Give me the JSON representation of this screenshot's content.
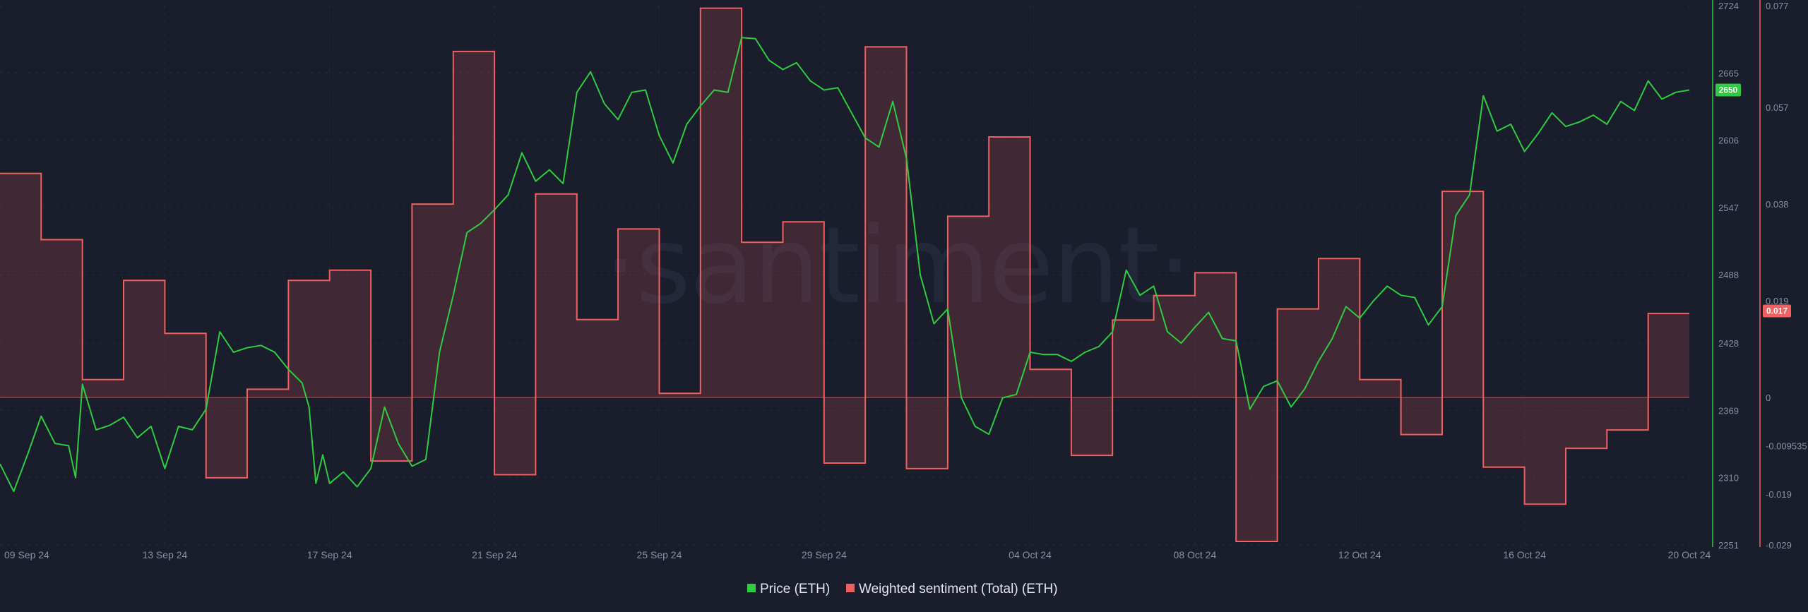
{
  "watermark": "·santiment·",
  "legend": [
    {
      "label": "Price (ETH)",
      "color": "#2ecc40"
    },
    {
      "label": "Weighted sentiment (Total) (ETH)",
      "color": "#f06060"
    }
  ],
  "price_axis_ticks": [
    "2724",
    "2665",
    "2606",
    "2547",
    "2488",
    "2428",
    "2369",
    "2310",
    "2251"
  ],
  "sentiment_axis_ticks": [
    "0.077",
    "0.057",
    "0.038",
    "0.019",
    "0",
    "-0.009535",
    "-0.019",
    "-0.029"
  ],
  "x_axis_ticks": [
    "09 Sep 24",
    "13 Sep 24",
    "17 Sep 24",
    "21 Sep 24",
    "25 Sep 24",
    "29 Sep 24",
    "04 Oct 24",
    "08 Oct 24",
    "12 Oct 24",
    "16 Oct 24",
    "20 Oct 24"
  ],
  "price_badge": "2650",
  "sentiment_badge": "0.017",
  "colors": {
    "background": "#1a1d2b",
    "price": "#2ecc40",
    "sentiment": "#f06060",
    "sentiment_fill": "rgba(240,96,96,0.18)"
  },
  "chart_data": {
    "type": "line",
    "x_range": [
      "2024-09-09",
      "2024-10-20"
    ],
    "price_ylim": [
      2251,
      2724
    ],
    "sentiment_ylim": [
      -0.029,
      0.077
    ],
    "series": [
      {
        "name": "Price (ETH)",
        "axis": "right-inner",
        "points": [
          [
            "2024-09-09 00:00",
            2322
          ],
          [
            "2024-09-09 08:00",
            2298
          ],
          [
            "2024-09-09 16:00",
            2330
          ],
          [
            "2024-09-10 00:00",
            2364
          ],
          [
            "2024-09-10 08:00",
            2340
          ],
          [
            "2024-09-10 16:00",
            2338
          ],
          [
            "2024-09-10 20:00",
            2310
          ],
          [
            "2024-09-11 00:00",
            2392
          ],
          [
            "2024-09-11 08:00",
            2352
          ],
          [
            "2024-09-11 16:00",
            2356
          ],
          [
            "2024-09-12 00:00",
            2363
          ],
          [
            "2024-09-12 08:00",
            2345
          ],
          [
            "2024-09-12 16:00",
            2355
          ],
          [
            "2024-09-13 00:00",
            2318
          ],
          [
            "2024-09-13 08:00",
            2355
          ],
          [
            "2024-09-13 16:00",
            2352
          ],
          [
            "2024-09-14 00:00",
            2370
          ],
          [
            "2024-09-14 08:00",
            2438
          ],
          [
            "2024-09-14 16:00",
            2420
          ],
          [
            "2024-09-15 00:00",
            2424
          ],
          [
            "2024-09-15 08:00",
            2426
          ],
          [
            "2024-09-15 16:00",
            2420
          ],
          [
            "2024-09-16 00:00",
            2405
          ],
          [
            "2024-09-16 08:00",
            2393
          ],
          [
            "2024-09-16 12:00",
            2372
          ],
          [
            "2024-09-16 16:00",
            2305
          ],
          [
            "2024-09-16 20:00",
            2330
          ],
          [
            "2024-09-17 00:00",
            2305
          ],
          [
            "2024-09-17 08:00",
            2315
          ],
          [
            "2024-09-17 16:00",
            2302
          ],
          [
            "2024-09-18 00:00",
            2318
          ],
          [
            "2024-09-18 08:00",
            2372
          ],
          [
            "2024-09-18 16:00",
            2340
          ],
          [
            "2024-09-19 00:00",
            2320
          ],
          [
            "2024-09-19 08:00",
            2326
          ],
          [
            "2024-09-19 16:00",
            2420
          ],
          [
            "2024-09-20 00:00",
            2470
          ],
          [
            "2024-09-20 08:00",
            2525
          ],
          [
            "2024-09-20 16:00",
            2533
          ],
          [
            "2024-09-21 00:00",
            2545
          ],
          [
            "2024-09-21 08:00",
            2558
          ],
          [
            "2024-09-21 16:00",
            2595
          ],
          [
            "2024-09-22 00:00",
            2570
          ],
          [
            "2024-09-22 08:00",
            2580
          ],
          [
            "2024-09-22 16:00",
            2568
          ],
          [
            "2024-09-23 00:00",
            2648
          ],
          [
            "2024-09-23 08:00",
            2666
          ],
          [
            "2024-09-23 16:00",
            2638
          ],
          [
            "2024-09-24 00:00",
            2624
          ],
          [
            "2024-09-24 08:00",
            2648
          ],
          [
            "2024-09-24 16:00",
            2650
          ],
          [
            "2024-09-25 00:00",
            2610
          ],
          [
            "2024-09-25 08:00",
            2586
          ],
          [
            "2024-09-25 16:00",
            2620
          ],
          [
            "2024-09-26 00:00",
            2636
          ],
          [
            "2024-09-26 08:00",
            2650
          ],
          [
            "2024-09-26 16:00",
            2648
          ],
          [
            "2024-09-27 00:00",
            2696
          ],
          [
            "2024-09-27 08:00",
            2695
          ],
          [
            "2024-09-27 16:00",
            2676
          ],
          [
            "2024-09-28 00:00",
            2668
          ],
          [
            "2024-09-28 08:00",
            2674
          ],
          [
            "2024-09-28 16:00",
            2658
          ],
          [
            "2024-09-29 00:00",
            2650
          ],
          [
            "2024-09-29 08:00",
            2652
          ],
          [
            "2024-09-29 16:00",
            2630
          ],
          [
            "2024-09-30 00:00",
            2608
          ],
          [
            "2024-09-30 08:00",
            2600
          ],
          [
            "2024-09-30 16:00",
            2640
          ],
          [
            "2024-10-01 00:00",
            2590
          ],
          [
            "2024-10-01 08:00",
            2488
          ],
          [
            "2024-10-01 16:00",
            2445
          ],
          [
            "2024-10-02 00:00",
            2458
          ],
          [
            "2024-10-02 08:00",
            2380
          ],
          [
            "2024-10-02 16:00",
            2355
          ],
          [
            "2024-10-03 00:00",
            2348
          ],
          [
            "2024-10-03 08:00",
            2380
          ],
          [
            "2024-10-03 16:00",
            2383
          ],
          [
            "2024-10-04 00:00",
            2420
          ],
          [
            "2024-10-04 08:00",
            2418
          ],
          [
            "2024-10-04 16:00",
            2418
          ],
          [
            "2024-10-05 00:00",
            2412
          ],
          [
            "2024-10-05 08:00",
            2420
          ],
          [
            "2024-10-05 16:00",
            2425
          ],
          [
            "2024-10-06 00:00",
            2438
          ],
          [
            "2024-10-06 08:00",
            2492
          ],
          [
            "2024-10-06 16:00",
            2470
          ],
          [
            "2024-10-07 00:00",
            2478
          ],
          [
            "2024-10-07 08:00",
            2438
          ],
          [
            "2024-10-07 16:00",
            2428
          ],
          [
            "2024-10-08 00:00",
            2442
          ],
          [
            "2024-10-08 08:00",
            2455
          ],
          [
            "2024-10-08 16:00",
            2432
          ],
          [
            "2024-10-09 00:00",
            2430
          ],
          [
            "2024-10-09 08:00",
            2370
          ],
          [
            "2024-10-09 16:00",
            2390
          ],
          [
            "2024-10-10 00:00",
            2395
          ],
          [
            "2024-10-10 08:00",
            2372
          ],
          [
            "2024-10-10 16:00",
            2388
          ],
          [
            "2024-10-11 00:00",
            2412
          ],
          [
            "2024-10-11 08:00",
            2432
          ],
          [
            "2024-10-11 16:00",
            2460
          ],
          [
            "2024-10-12 00:00",
            2450
          ],
          [
            "2024-10-12 08:00",
            2465
          ],
          [
            "2024-10-12 16:00",
            2478
          ],
          [
            "2024-10-13 00:00",
            2470
          ],
          [
            "2024-10-13 08:00",
            2468
          ],
          [
            "2024-10-13 16:00",
            2444
          ],
          [
            "2024-10-14 00:00",
            2460
          ],
          [
            "2024-10-14 08:00",
            2540
          ],
          [
            "2024-10-14 16:00",
            2558
          ],
          [
            "2024-10-15 00:00",
            2645
          ],
          [
            "2024-10-15 08:00",
            2614
          ],
          [
            "2024-10-15 16:00",
            2620
          ],
          [
            "2024-10-16 00:00",
            2596
          ],
          [
            "2024-10-16 08:00",
            2612
          ],
          [
            "2024-10-16 16:00",
            2630
          ],
          [
            "2024-10-17 00:00",
            2618
          ],
          [
            "2024-10-17 08:00",
            2622
          ],
          [
            "2024-10-17 16:00",
            2628
          ],
          [
            "2024-10-18 00:00",
            2620
          ],
          [
            "2024-10-18 08:00",
            2640
          ],
          [
            "2024-10-18 16:00",
            2632
          ],
          [
            "2024-10-19 00:00",
            2658
          ],
          [
            "2024-10-19 08:00",
            2642
          ],
          [
            "2024-10-19 16:00",
            2648
          ],
          [
            "2024-10-20 00:00",
            2650
          ]
        ]
      },
      {
        "name": "Weighted sentiment (Total) (ETH)",
        "axis": "right-outer",
        "step": true,
        "points": [
          [
            "2024-09-09",
            0.044
          ],
          [
            "2024-09-10",
            0.031
          ],
          [
            "2024-09-11",
            0.0035
          ],
          [
            "2024-09-12",
            0.023
          ],
          [
            "2024-09-13",
            0.0126
          ],
          [
            "2024-09-14",
            -0.0158
          ],
          [
            "2024-09-15",
            0.0016
          ],
          [
            "2024-09-16",
            0.023
          ],
          [
            "2024-09-17",
            0.025
          ],
          [
            "2024-09-18",
            -0.0125
          ],
          [
            "2024-09-19",
            0.038
          ],
          [
            "2024-09-20",
            0.068
          ],
          [
            "2024-09-21",
            -0.0152
          ],
          [
            "2024-09-22",
            0.04
          ],
          [
            "2024-09-23",
            0.0153
          ],
          [
            "2024-09-24",
            0.0331
          ],
          [
            "2024-09-25",
            0.0008
          ],
          [
            "2024-09-26",
            0.0765
          ],
          [
            "2024-09-27",
            0.0305
          ],
          [
            "2024-09-28",
            0.0345
          ],
          [
            "2024-09-29",
            -0.0129
          ],
          [
            "2024-09-30",
            0.0689
          ],
          [
            "2024-10-01",
            -0.014
          ],
          [
            "2024-10-02",
            0.0356
          ],
          [
            "2024-10-03",
            0.0512
          ],
          [
            "2024-10-04",
            0.0055
          ],
          [
            "2024-10-05",
            -0.0114
          ],
          [
            "2024-10-06",
            0.0152
          ],
          [
            "2024-10-07",
            0.02
          ],
          [
            "2024-10-08",
            0.0245
          ],
          [
            "2024-10-09",
            -0.0283
          ],
          [
            "2024-10-10",
            0.0174
          ],
          [
            "2024-10-11",
            0.0273
          ],
          [
            "2024-10-12",
            0.0035
          ],
          [
            "2024-10-13",
            -0.0073
          ],
          [
            "2024-10-14",
            0.0405
          ],
          [
            "2024-10-15",
            -0.0137
          ],
          [
            "2024-10-16",
            -0.021
          ],
          [
            "2024-10-17",
            -0.01
          ],
          [
            "2024-10-18",
            -0.0064
          ],
          [
            "2024-10-19",
            0.0165
          ],
          [
            "2024-10-20",
            0.0165
          ]
        ]
      }
    ],
    "legend_position": "bottom-center",
    "grid": true
  }
}
